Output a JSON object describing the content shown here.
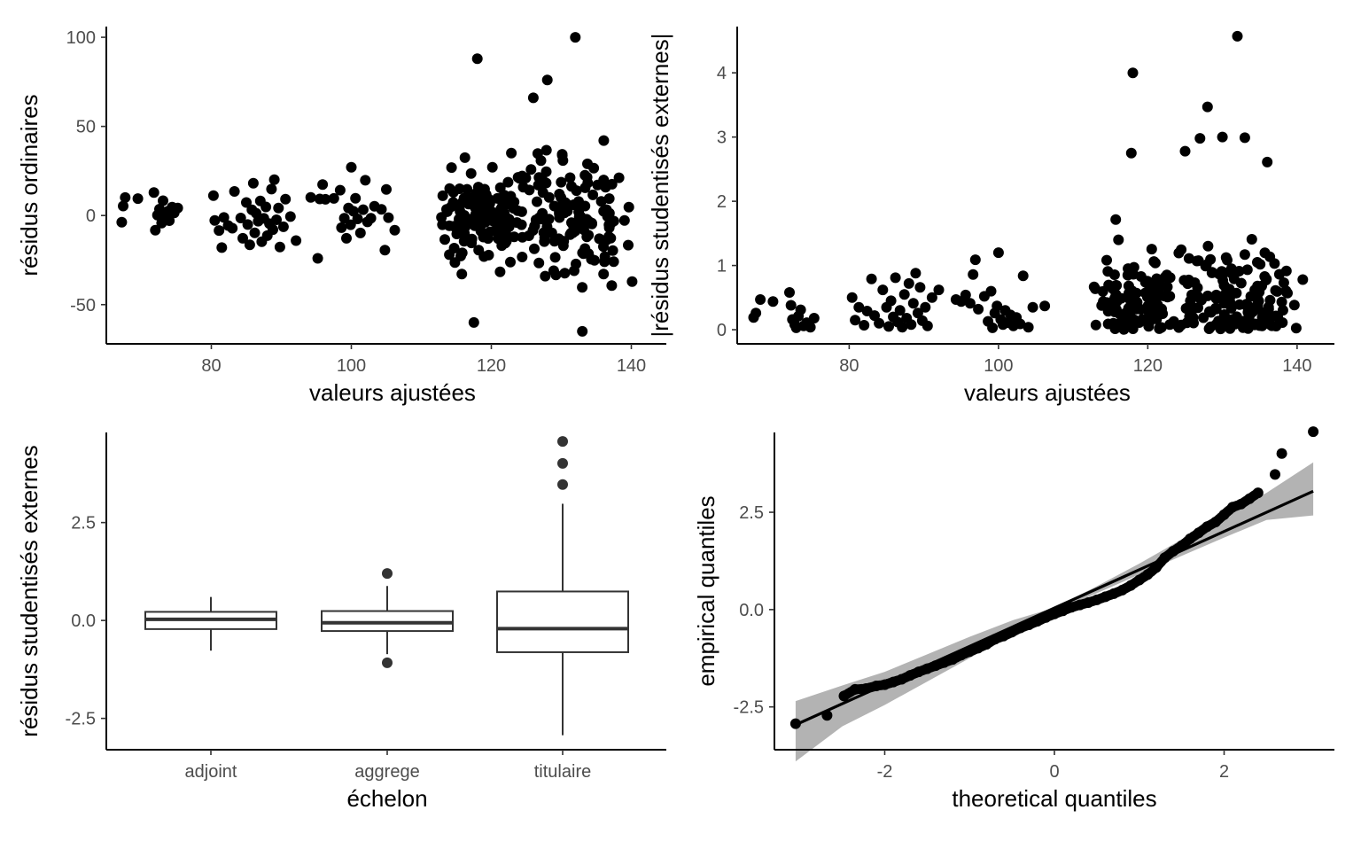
{
  "chart_data": [
    {
      "type": "scatter",
      "xlabel": "valeurs ajustées",
      "ylabel": "résidus ordinaires",
      "xlim": [
        65,
        145
      ],
      "ylim": [
        -72,
        106
      ],
      "xticks": [
        "80",
        "100",
        "120",
        "140"
      ],
      "yticks": [
        "-50",
        "0",
        "50",
        "100"
      ],
      "grid": false,
      "points": [
        [
          67.2,
          -3.8
        ],
        [
          67.4,
          5.3
        ],
        [
          67.7,
          10.1
        ],
        [
          69.5,
          9.5
        ],
        [
          71.8,
          12.9
        ],
        [
          72.0,
          -8.2
        ],
        [
          72.3,
          0.2
        ],
        [
          72.6,
          3.6
        ],
        [
          72.9,
          -4.3
        ],
        [
          73.1,
          8.3
        ],
        [
          73.4,
          -0.8
        ],
        [
          73.8,
          2.4
        ],
        [
          74.0,
          -2.9
        ],
        [
          74.4,
          4.7
        ],
        [
          74.7,
          1.5
        ],
        [
          75.2,
          4.2
        ],
        [
          80.3,
          11.2
        ],
        [
          80.5,
          -2.8
        ],
        [
          81.1,
          -8.4
        ],
        [
          81.5,
          -18.0
        ],
        [
          81.8,
          -1.1
        ],
        [
          82.4,
          -5.6
        ],
        [
          83.0,
          -7.1
        ],
        [
          83.3,
          13.5
        ],
        [
          84.2,
          -1.4
        ],
        [
          84.5,
          -12.8
        ],
        [
          85.0,
          7.3
        ],
        [
          85.2,
          -5.1
        ],
        [
          85.5,
          -16.4
        ],
        [
          85.8,
          3.2
        ],
        [
          86.0,
          18.1
        ],
        [
          86.2,
          -9.7
        ],
        [
          86.4,
          1.3
        ],
        [
          86.7,
          -3.2
        ],
        [
          87.0,
          8.2
        ],
        [
          87.2,
          -14.7
        ],
        [
          87.5,
          -1.6
        ],
        [
          87.8,
          4.8
        ],
        [
          88.0,
          -11.3
        ],
        [
          88.3,
          -4.6
        ],
        [
          88.6,
          14.8
        ],
        [
          88.8,
          -7.9
        ],
        [
          89.0,
          20.1
        ],
        [
          89.3,
          -2.4
        ],
        [
          89.6,
          4.2
        ],
        [
          89.8,
          -17.7
        ],
        [
          90.3,
          -6.3
        ],
        [
          90.6,
          9.2
        ],
        [
          91.3,
          -0.6
        ],
        [
          92.1,
          -14.1
        ],
        [
          94.2,
          10.2
        ],
        [
          95.2,
          -24.0
        ],
        [
          95.5,
          9.3
        ],
        [
          95.9,
          17.4
        ],
        [
          96.3,
          9.1
        ],
        [
          97.5,
          9.6
        ],
        [
          98.4,
          14.2
        ],
        [
          98.6,
          -6.8
        ],
        [
          99.0,
          -1.5
        ],
        [
          99.3,
          -12.8
        ],
        [
          99.6,
          4.2
        ],
        [
          99.9,
          -5.2
        ],
        [
          100.0,
          27.1
        ],
        [
          100.3,
          2.4
        ],
        [
          100.6,
          9.7
        ],
        [
          100.9,
          -1.9
        ],
        [
          101.3,
          -9.8
        ],
        [
          101.7,
          3.3
        ],
        [
          102.0,
          19.8
        ],
        [
          102.3,
          -3.6
        ],
        [
          102.8,
          -1.5
        ],
        [
          103.3,
          5.2
        ],
        [
          104.3,
          3.5
        ],
        [
          104.8,
          -19.4
        ],
        [
          105.0,
          14.6
        ],
        [
          105.3,
          -1.2
        ],
        [
          106.2,
          -8.2
        ]
      ]
    },
    {
      "type": "scatter",
      "xlabel": "valeurs ajustées",
      "ylabel": "|résidus studentisés externes|",
      "xlim": [
        65,
        145
      ],
      "ylim": [
        -0.22,
        4.72
      ],
      "xticks": [
        "80",
        "100",
        "120",
        "140"
      ],
      "yticks": [
        "0",
        "1",
        "2",
        "3",
        "4"
      ],
      "grid": false,
      "points": [
        [
          67.2,
          0.19
        ],
        [
          67.5,
          0.26
        ],
        [
          68.1,
          0.47
        ],
        [
          69.8,
          0.44
        ],
        [
          72.0,
          0.58
        ],
        [
          72.2,
          0.38
        ],
        [
          72.4,
          0.16
        ],
        [
          72.7,
          0.08
        ],
        [
          72.9,
          0.03
        ],
        [
          73.2,
          0.21
        ],
        [
          73.5,
          0.31
        ],
        [
          73.9,
          0.06
        ],
        [
          74.3,
          0.11
        ],
        [
          74.8,
          0.04
        ],
        [
          75.3,
          0.18
        ],
        [
          80.4,
          0.5
        ],
        [
          80.8,
          0.15
        ],
        [
          81.3,
          0.35
        ],
        [
          82.0,
          0.07
        ],
        [
          82.4,
          0.29
        ],
        [
          83.0,
          0.79
        ],
        [
          83.4,
          0.22
        ],
        [
          84.0,
          0.1
        ],
        [
          84.5,
          0.62
        ],
        [
          85.0,
          0.35
        ],
        [
          85.3,
          0.05
        ],
        [
          85.6,
          0.45
        ],
        [
          85.9,
          0.2
        ],
        [
          86.2,
          0.81
        ],
        [
          86.5,
          0.12
        ],
        [
          86.8,
          0.3
        ],
        [
          87.1,
          0.04
        ],
        [
          87.4,
          0.55
        ],
        [
          87.7,
          0.18
        ],
        [
          88.0,
          0.72
        ],
        [
          88.3,
          0.08
        ],
        [
          88.6,
          0.41
        ],
        [
          88.9,
          0.88
        ],
        [
          89.2,
          0.26
        ],
        [
          89.5,
          0.66
        ],
        [
          89.8,
          0.14
        ],
        [
          90.2,
          0.35
        ],
        [
          90.5,
          0.06
        ],
        [
          91.1,
          0.5
        ],
        [
          92.0,
          0.62
        ],
        [
          94.3,
          0.47
        ],
        [
          95.0,
          0.44
        ],
        [
          95.6,
          0.54
        ],
        [
          96.2,
          0.41
        ],
        [
          96.6,
          0.86
        ],
        [
          96.9,
          1.09
        ],
        [
          97.3,
          0.32
        ],
        [
          98.1,
          0.52
        ],
        [
          98.6,
          0.13
        ],
        [
          99.0,
          0.6
        ],
        [
          99.2,
          0.03
        ],
        [
          99.5,
          0.26
        ],
        [
          99.8,
          0.37
        ],
        [
          100.0,
          1.2
        ],
        [
          100.3,
          0.16
        ],
        [
          100.6,
          0.08
        ],
        [
          100.9,
          0.3
        ],
        [
          101.2,
          0.11
        ],
        [
          101.6,
          0.23
        ],
        [
          102.0,
          0.06
        ],
        [
          102.4,
          0.19
        ],
        [
          102.9,
          0.09
        ],
        [
          103.3,
          0.84
        ],
        [
          104.0,
          0.04
        ],
        [
          104.6,
          0.35
        ],
        [
          106.2,
          0.37
        ]
      ]
    },
    {
      "type": "box",
      "xlabel": "échelon",
      "ylabel": "résidus studentisés externes",
      "ylim": [
        -3.3,
        4.8
      ],
      "yticks": [
        "-2.5",
        "0.0",
        "2.5"
      ],
      "grid": false,
      "categories": [
        "adjoint",
        "aggrege",
        "titulaire"
      ],
      "boxes": [
        {
          "q1": -0.22,
          "median": 0.03,
          "q3": 0.22,
          "whisker_low": -0.77,
          "whisker_high": 0.6,
          "outliers": []
        },
        {
          "q1": -0.27,
          "median": -0.06,
          "q3": 0.24,
          "whisker_low": -0.86,
          "whisker_high": 0.88,
          "outliers": [
            1.2,
            -1.08
          ]
        },
        {
          "q1": -0.81,
          "median": -0.21,
          "q3": 0.74,
          "whisker_low": -2.93,
          "whisker_high": 2.98,
          "outliers": [
            4.57,
            4.01,
            3.47
          ]
        }
      ]
    },
    {
      "type": "qqplot",
      "xlabel": "theoretical quantiles",
      "ylabel": "empirical quantiles",
      "xlim": [
        -3.3,
        3.3
      ],
      "ylim": [
        -3.6,
        4.55
      ],
      "xticks": [
        "-2",
        "0",
        "2"
      ],
      "yticks": [
        "-2.5",
        "0.0",
        "2.5"
      ],
      "grid": false,
      "reference_line": {
        "x": [
          -3.05,
          3.05
        ],
        "y": [
          -2.96,
          3.04
        ]
      },
      "confidence_band": {
        "x": [
          -3.05,
          -2.5,
          -2.0,
          -1.5,
          -1.0,
          -0.5,
          0.0,
          0.5,
          1.0,
          1.5,
          2.0,
          2.5,
          3.05
        ],
        "lower": [
          -3.9,
          -3.0,
          -2.45,
          -1.85,
          -1.25,
          -0.62,
          -0.05,
          0.42,
          0.9,
          1.38,
          1.85,
          2.3,
          2.42
        ],
        "upper": [
          -2.35,
          -1.95,
          -1.6,
          -1.15,
          -0.7,
          -0.28,
          0.05,
          0.6,
          1.18,
          1.8,
          2.42,
          3.0,
          3.78
        ]
      },
      "points": [
        [
          -3.05,
          -2.93
        ],
        [
          -2.68,
          -2.72
        ],
        [
          -2.48,
          -2.22
        ],
        [
          -2.35,
          -2.05
        ],
        [
          -2.22,
          -2.03
        ],
        [
          -2.1,
          -1.96
        ],
        [
          -2.0,
          -1.93
        ],
        [
          -1.9,
          -1.86
        ],
        [
          -1.8,
          -1.79
        ],
        [
          -1.7,
          -1.69
        ],
        [
          -1.6,
          -1.6
        ],
        [
          -1.5,
          -1.52
        ],
        [
          -1.4,
          -1.44
        ],
        [
          -1.3,
          -1.36
        ],
        [
          -1.2,
          -1.28
        ],
        [
          -1.1,
          -1.17
        ],
        [
          -1.0,
          -1.08
        ],
        [
          -0.9,
          -0.99
        ],
        [
          -0.8,
          -0.89
        ],
        [
          -0.7,
          -0.76
        ],
        [
          -0.6,
          -0.68
        ],
        [
          -0.5,
          -0.58
        ],
        [
          -0.4,
          -0.47
        ],
        [
          -0.3,
          -0.39
        ],
        [
          -0.2,
          -0.3
        ],
        [
          -0.1,
          -0.2
        ],
        [
          0.0,
          -0.11
        ],
        [
          0.1,
          -0.03
        ],
        [
          0.2,
          0.06
        ],
        [
          0.3,
          0.12
        ],
        [
          0.4,
          0.18
        ],
        [
          0.5,
          0.25
        ],
        [
          0.6,
          0.33
        ],
        [
          0.7,
          0.41
        ],
        [
          0.8,
          0.5
        ],
        [
          0.9,
          0.62
        ],
        [
          1.0,
          0.76
        ],
        [
          1.1,
          0.9
        ],
        [
          1.2,
          1.08
        ],
        [
          1.3,
          1.33
        ],
        [
          1.4,
          1.5
        ],
        [
          1.5,
          1.64
        ],
        [
          1.6,
          1.82
        ],
        [
          1.7,
          1.97
        ],
        [
          1.8,
          2.13
        ],
        [
          1.9,
          2.25
        ],
        [
          2.0,
          2.44
        ],
        [
          2.1,
          2.63
        ],
        [
          2.2,
          2.71
        ],
        [
          2.3,
          2.85
        ],
        [
          2.4,
          3.0
        ],
        [
          2.6,
          3.47
        ],
        [
          2.68,
          4.01
        ],
        [
          3.05,
          4.57
        ]
      ]
    }
  ]
}
